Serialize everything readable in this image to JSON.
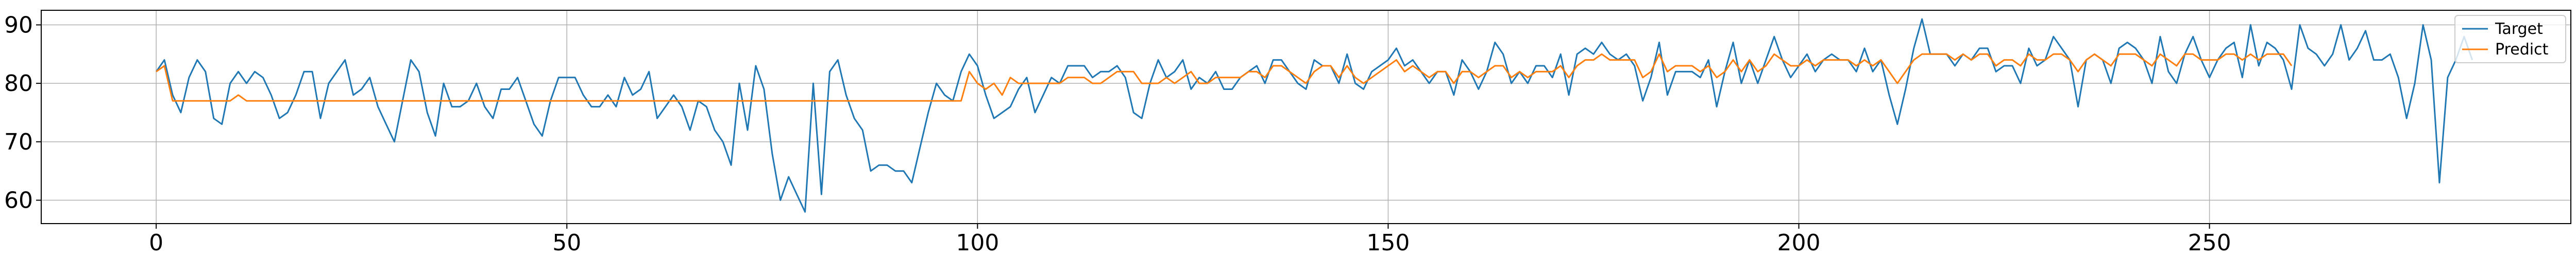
{
  "chart_data": {
    "type": "line",
    "title": "",
    "xlabel": "",
    "ylabel": "",
    "xlim": [
      -14,
      294
    ],
    "ylim": [
      56,
      92.5
    ],
    "xticks": [
      0,
      50,
      100,
      150,
      200,
      250
    ],
    "yticks": [
      60,
      70,
      80,
      90
    ],
    "grid": true,
    "legend_position": "top-right",
    "series": [
      {
        "name": "Target",
        "color": "#1f77b4",
        "values": [
          82,
          84,
          78,
          75,
          81,
          84,
          82,
          74,
          73,
          80,
          82,
          80,
          82,
          81,
          78,
          74,
          75,
          78,
          82,
          82,
          74,
          80,
          82,
          84,
          78,
          79,
          81,
          76,
          73,
          70,
          77,
          84,
          82,
          75,
          71,
          80,
          76,
          76,
          77,
          80,
          76,
          74,
          79,
          79,
          81,
          77,
          73,
          71,
          77,
          81,
          81,
          81,
          78,
          76,
          76,
          78,
          76,
          81,
          78,
          79,
          82,
          74,
          76,
          78,
          76,
          72,
          77,
          76,
          72,
          70,
          66,
          80,
          72,
          83,
          79,
          68,
          60,
          64,
          61,
          58,
          80,
          61,
          82,
          84,
          78,
          74,
          72,
          65,
          66,
          66,
          65,
          65,
          63,
          69,
          75,
          80,
          78,
          77,
          82,
          85,
          83,
          78,
          74,
          75,
          76,
          79,
          81,
          75,
          78,
          81,
          80,
          83,
          83,
          83,
          81,
          82,
          82,
          83,
          81,
          75,
          74,
          80,
          84,
          81,
          82,
          84,
          79,
          81,
          80,
          82,
          79,
          79,
          81,
          82,
          83,
          80,
          84,
          84,
          82,
          80,
          79,
          84,
          83,
          83,
          80,
          85,
          80,
          79,
          82,
          83,
          84,
          86,
          83,
          84,
          82,
          80,
          82,
          82,
          78,
          84,
          82,
          79,
          82,
          87,
          85,
          80,
          82,
          80,
          83,
          83,
          81,
          85,
          78,
          85,
          86,
          85,
          87,
          85,
          84,
          85,
          83,
          77,
          81,
          87,
          78,
          82,
          82,
          82,
          81,
          84,
          76,
          82,
          87,
          80,
          84,
          80,
          84,
          88,
          84,
          81,
          83,
          85,
          82,
          84,
          85,
          84,
          84,
          82,
          86,
          82,
          84,
          78,
          73,
          79,
          86,
          91,
          85,
          85,
          85,
          83,
          85,
          84,
          86,
          86,
          82,
          83,
          83,
          80,
          86,
          83,
          84,
          88,
          86,
          84,
          76,
          84,
          85,
          84,
          80,
          86,
          87,
          86,
          84,
          80,
          88,
          82,
          80,
          85,
          88,
          84,
          81,
          84,
          86,
          87,
          81,
          90,
          83,
          87,
          86,
          84,
          79,
          90,
          86,
          85,
          83,
          85,
          90,
          84,
          86,
          89,
          84,
          84,
          85,
          81,
          74,
          80,
          90,
          84,
          63,
          81,
          84,
          88,
          84
        ]
      },
      {
        "name": "Predict",
        "color": "#ff7f0e",
        "values": [
          82,
          83,
          77,
          77,
          77,
          77,
          77,
          77,
          77,
          77,
          78,
          77,
          77,
          77,
          77,
          77,
          77,
          77,
          77,
          77,
          77,
          77,
          77,
          77,
          77,
          77,
          77,
          77,
          77,
          77,
          77,
          77,
          77,
          77,
          77,
          77,
          77,
          77,
          77,
          77,
          77,
          77,
          77,
          77,
          77,
          77,
          77,
          77,
          77,
          77,
          77,
          77,
          77,
          77,
          77,
          77,
          77,
          77,
          77,
          77,
          77,
          77,
          77,
          77,
          77,
          77,
          77,
          77,
          77,
          77,
          77,
          77,
          77,
          77,
          77,
          77,
          77,
          77,
          77,
          77,
          77,
          77,
          77,
          77,
          77,
          77,
          77,
          77,
          77,
          77,
          77,
          77,
          77,
          77,
          77,
          77,
          77,
          77,
          77,
          82,
          80,
          79,
          80,
          78,
          81,
          80,
          80,
          80,
          80,
          80,
          80,
          81,
          81,
          81,
          80,
          80,
          81,
          82,
          82,
          82,
          80,
          80,
          80,
          81,
          80,
          81,
          82,
          80,
          80,
          81,
          81,
          81,
          81,
          82,
          82,
          81,
          83,
          83,
          82,
          81,
          80,
          82,
          83,
          83,
          81,
          83,
          81,
          80,
          81,
          82,
          83,
          84,
          82,
          83,
          82,
          81,
          82,
          82,
          80,
          82,
          82,
          81,
          82,
          83,
          83,
          81,
          82,
          81,
          82,
          82,
          82,
          83,
          81,
          83,
          84,
          84,
          85,
          84,
          84,
          84,
          84,
          81,
          82,
          85,
          82,
          83,
          83,
          83,
          82,
          83,
          81,
          82,
          84,
          82,
          84,
          82,
          83,
          85,
          84,
          83,
          83,
          84,
          83,
          84,
          84,
          84,
          84,
          83,
          84,
          83,
          84,
          82,
          80,
          82,
          84,
          85,
          85,
          85,
          85,
          84,
          85,
          84,
          85,
          85,
          83,
          84,
          84,
          83,
          85,
          84,
          84,
          85,
          85,
          84,
          82,
          84,
          85,
          84,
          83,
          85,
          85,
          85,
          84,
          83,
          85,
          84,
          83,
          85,
          85,
          84,
          84,
          84,
          85,
          85,
          84,
          85,
          84,
          85,
          85,
          85,
          83
        ]
      }
    ]
  }
}
